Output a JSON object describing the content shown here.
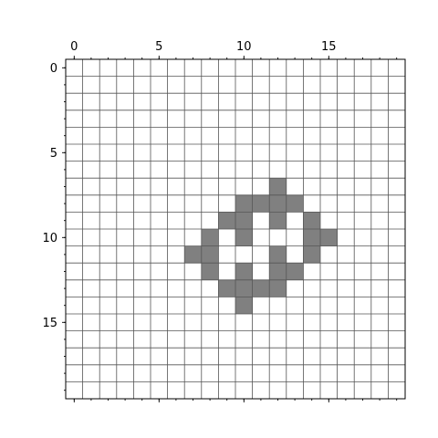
{
  "chart_data": {
    "type": "heatmap",
    "rows": 20,
    "cols": 20,
    "xlim": [
      -0.5,
      19.5
    ],
    "ylim": [
      19.5,
      -0.5
    ],
    "x_axis_position": "top",
    "x_ticks": [
      0,
      5,
      10,
      15
    ],
    "x_tick_labels": [
      "0",
      "5",
      "10",
      "15"
    ],
    "y_ticks": [
      0,
      5,
      10,
      15
    ],
    "y_tick_labels": [
      "0",
      "5",
      "10",
      "15"
    ],
    "grid": true,
    "colors": {
      "filled": "#808080",
      "empty": "#ffffff",
      "grid": "#555555"
    },
    "filled_cells": [
      [
        7,
        12
      ],
      [
        8,
        10
      ],
      [
        8,
        11
      ],
      [
        8,
        12
      ],
      [
        8,
        13
      ],
      [
        9,
        9
      ],
      [
        9,
        10
      ],
      [
        9,
        12
      ],
      [
        9,
        14
      ],
      [
        10,
        8
      ],
      [
        10,
        10
      ],
      [
        10,
        14
      ],
      [
        10,
        15
      ],
      [
        11,
        7
      ],
      [
        11,
        8
      ],
      [
        11,
        12
      ],
      [
        11,
        14
      ],
      [
        12,
        8
      ],
      [
        12,
        10
      ],
      [
        12,
        12
      ],
      [
        12,
        13
      ],
      [
        13,
        9
      ],
      [
        13,
        10
      ],
      [
        13,
        11
      ],
      [
        13,
        12
      ],
      [
        14,
        10
      ]
    ]
  }
}
